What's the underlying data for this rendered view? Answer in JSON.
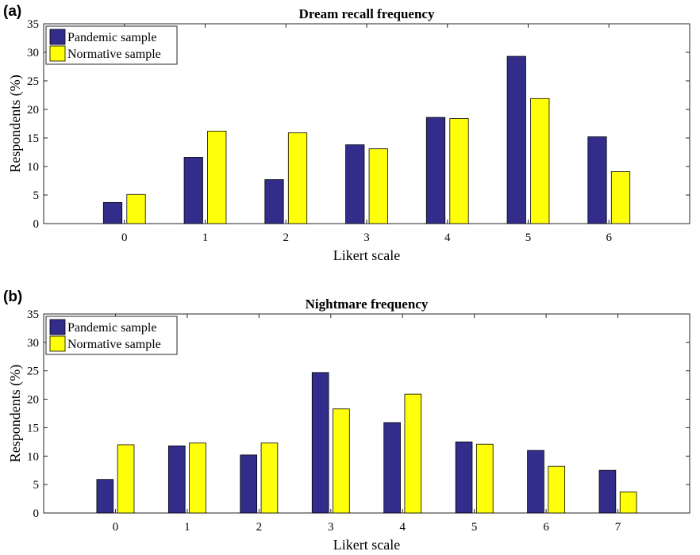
{
  "chart_data": [
    {
      "panel": "(a)",
      "type": "bar",
      "title": "Dream recall frequency",
      "xlabel": "Likert scale",
      "ylabel": "Respondents (%)",
      "categories": [
        "0",
        "1",
        "2",
        "3",
        "4",
        "5",
        "6"
      ],
      "xlim": [
        -1,
        7
      ],
      "ylim": [
        0,
        35
      ],
      "yticks": [
        0,
        5,
        10,
        15,
        20,
        25,
        30,
        35
      ],
      "legend_position": "top-left",
      "grid": false,
      "series": [
        {
          "name": "Pandemic sample",
          "color": "#322d8b",
          "values": [
            3.7,
            11.6,
            7.7,
            13.8,
            18.6,
            29.3,
            15.2
          ]
        },
        {
          "name": "Normative sample",
          "color": "#ffff0a",
          "values": [
            5.1,
            16.2,
            15.9,
            13.1,
            18.4,
            21.9,
            9.1
          ]
        }
      ]
    },
    {
      "panel": "(b)",
      "type": "bar",
      "title": "Nightmare frequency",
      "xlabel": "Likert scale",
      "ylabel": "Respondents (%)",
      "categories": [
        "0",
        "1",
        "2",
        "3",
        "4",
        "5",
        "6",
        "7"
      ],
      "xlim": [
        -1,
        8
      ],
      "ylim": [
        0,
        35
      ],
      "yticks": [
        0,
        5,
        10,
        15,
        20,
        25,
        30,
        35
      ],
      "legend_position": "top-left",
      "grid": false,
      "series": [
        {
          "name": "Pandemic sample",
          "color": "#322d8b",
          "values": [
            5.9,
            11.8,
            10.2,
            24.7,
            15.9,
            12.5,
            11.0,
            7.5
          ]
        },
        {
          "name": "Normative sample",
          "color": "#ffff0a",
          "values": [
            12.0,
            12.3,
            12.3,
            18.3,
            20.9,
            12.1,
            8.2,
            3.7
          ]
        }
      ]
    }
  ]
}
